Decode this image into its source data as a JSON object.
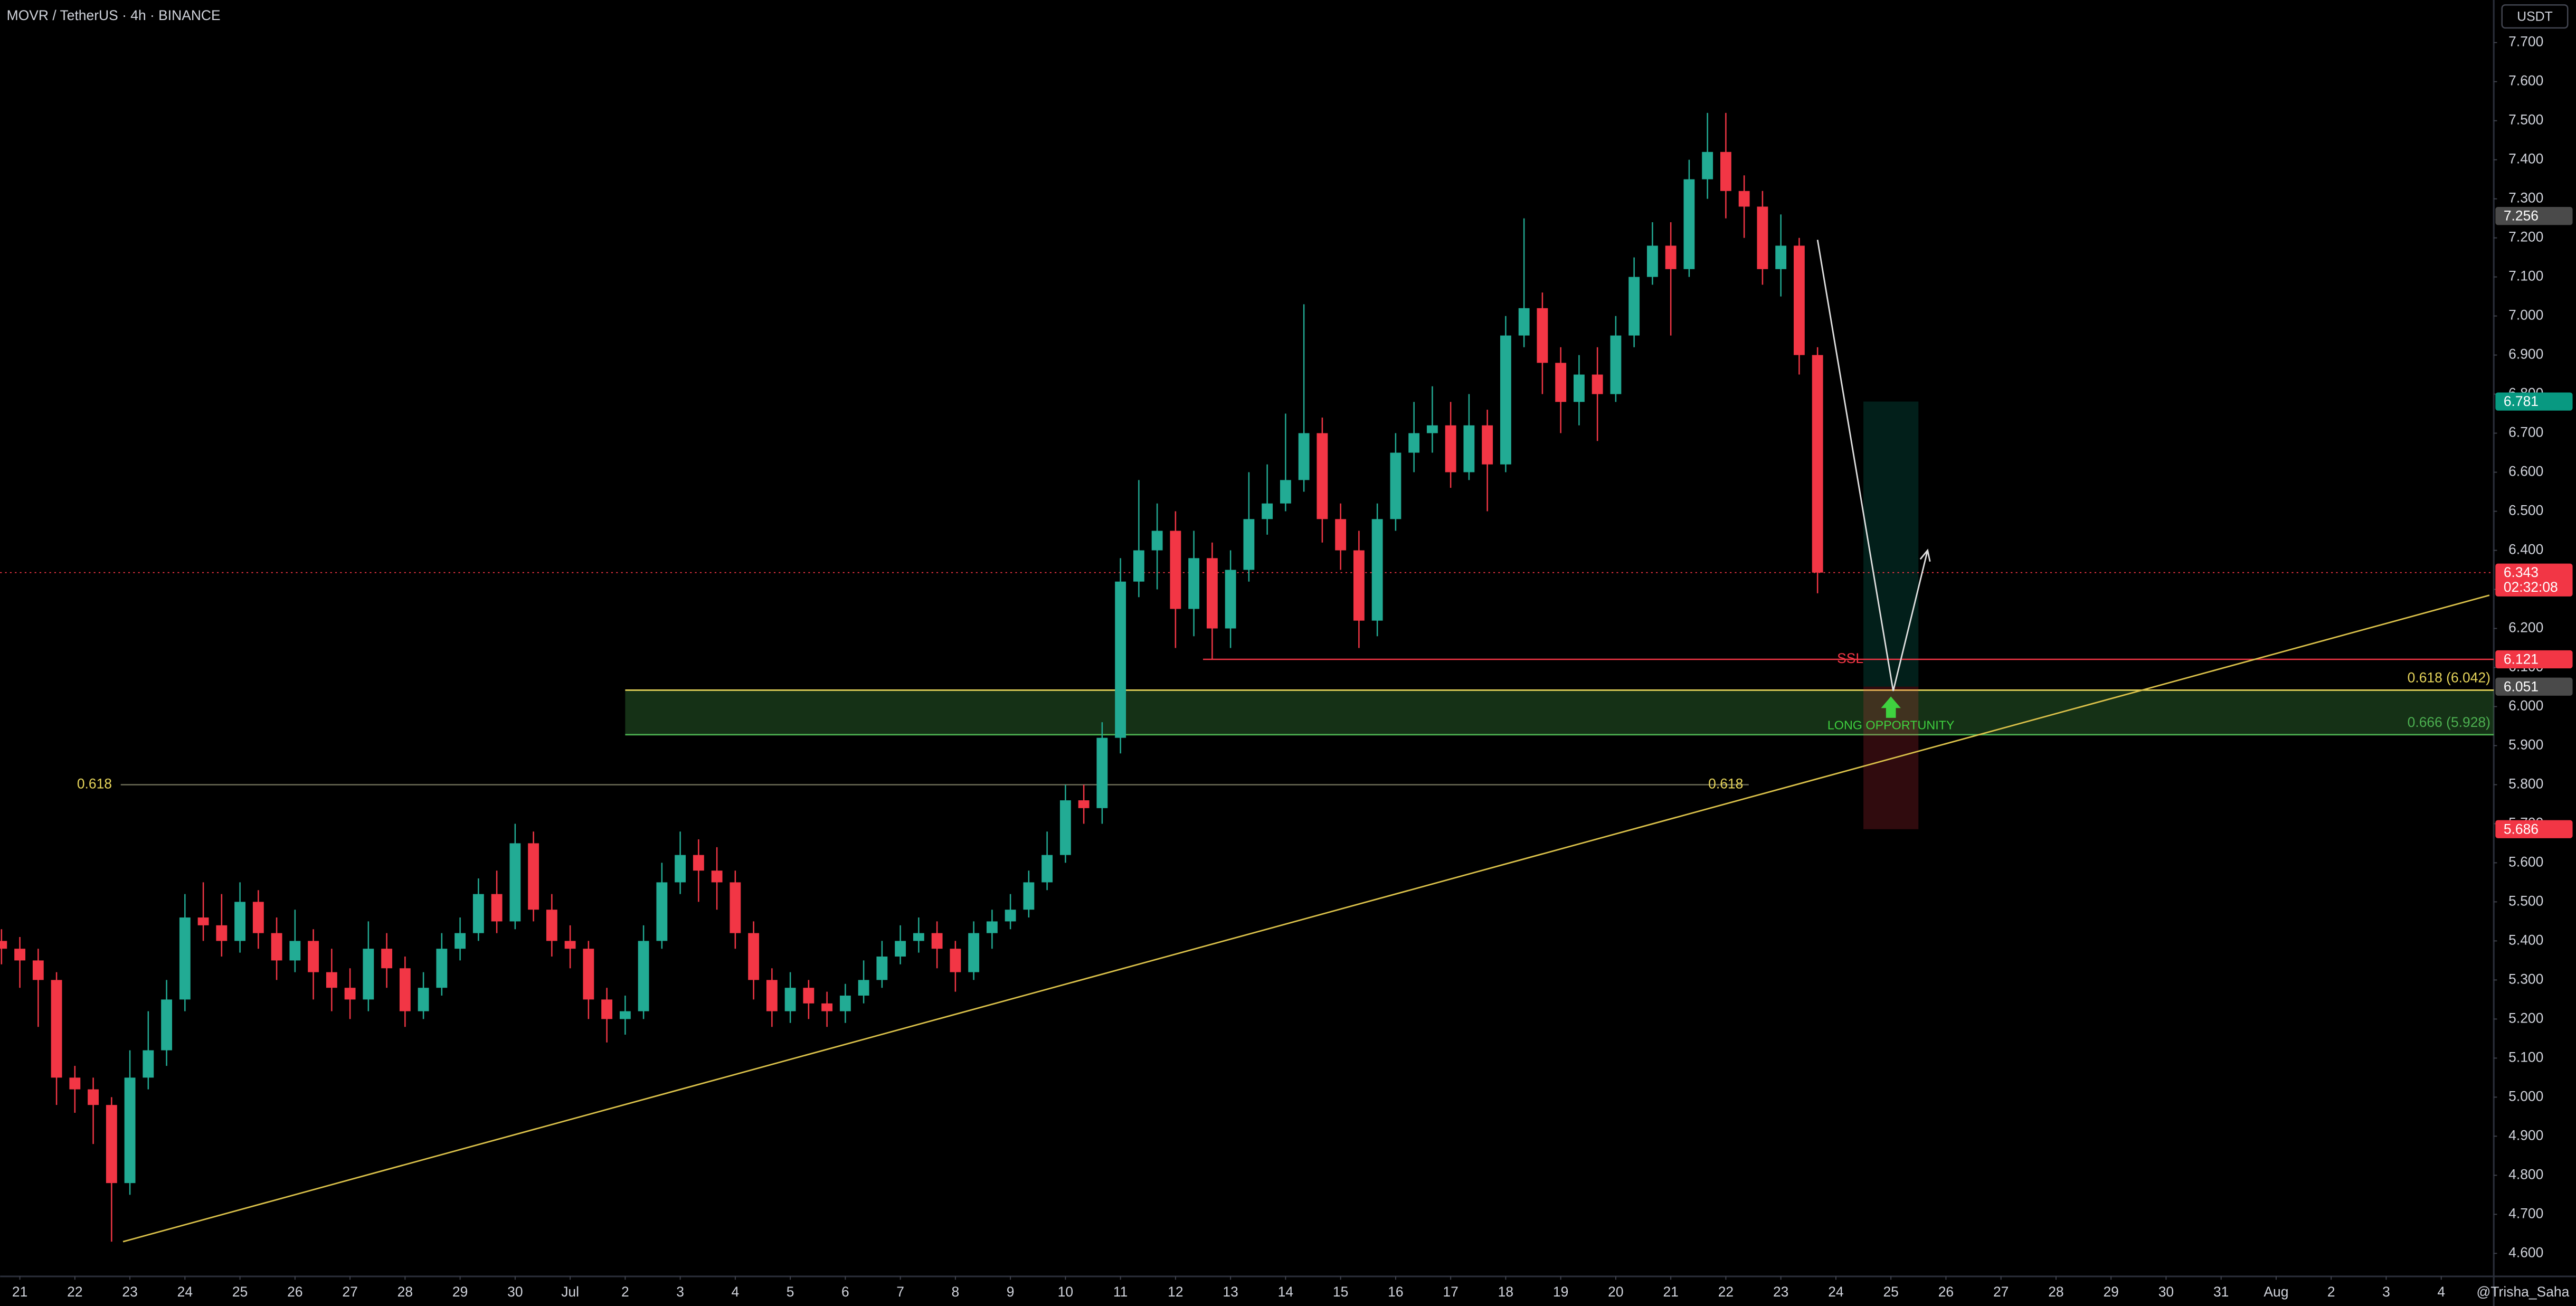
{
  "chart_data": {
    "type": "candlestick",
    "title": "MOVR / TetherUS · 4h · BINANCE",
    "currency": "USDT",
    "watermark": "@Trisha_Saha",
    "up_color": "#22ab94",
    "down_color": "#f23645",
    "xlim": [
      -8.6,
      1078.9
    ],
    "ylim": [
      4.541,
      7.809
    ],
    "xticks": [
      {
        "value": 0,
        "label": "21"
      },
      {
        "value": 24,
        "label": "22"
      },
      {
        "value": 48,
        "label": "23"
      },
      {
        "value": 72,
        "label": "24"
      },
      {
        "value": 96,
        "label": "25"
      },
      {
        "value": 120,
        "label": "26"
      },
      {
        "value": 144,
        "label": "27"
      },
      {
        "value": 168,
        "label": "28"
      },
      {
        "value": 192,
        "label": "29"
      },
      {
        "value": 216,
        "label": "30"
      },
      {
        "value": 240,
        "label": "Jul"
      },
      {
        "value": 264,
        "label": "2"
      },
      {
        "value": 288,
        "label": "3"
      },
      {
        "value": 312,
        "label": "4"
      },
      {
        "value": 336,
        "label": "5"
      },
      {
        "value": 360,
        "label": "6"
      },
      {
        "value": 384,
        "label": "7"
      },
      {
        "value": 408,
        "label": "8"
      },
      {
        "value": 432,
        "label": "9"
      },
      {
        "value": 456,
        "label": "10"
      },
      {
        "value": 480,
        "label": "11"
      },
      {
        "value": 504,
        "label": "12"
      },
      {
        "value": 528,
        "label": "13"
      },
      {
        "value": 552,
        "label": "14"
      },
      {
        "value": 576,
        "label": "15"
      },
      {
        "value": 600,
        "label": "16"
      },
      {
        "value": 624,
        "label": "17"
      },
      {
        "value": 648,
        "label": "18"
      },
      {
        "value": 672,
        "label": "19"
      },
      {
        "value": 696,
        "label": "20"
      },
      {
        "value": 720,
        "label": "21"
      },
      {
        "value": 744,
        "label": "22"
      },
      {
        "value": 768,
        "label": "23"
      },
      {
        "value": 792,
        "label": "24"
      },
      {
        "value": 816,
        "label": "25"
      },
      {
        "value": 840,
        "label": "26"
      },
      {
        "value": 864,
        "label": "27"
      },
      {
        "value": 888,
        "label": "28"
      },
      {
        "value": 912,
        "label": "29"
      },
      {
        "value": 936,
        "label": "30"
      },
      {
        "value": 960,
        "label": "31"
      },
      {
        "value": 984,
        "label": "Aug"
      },
      {
        "value": 1008,
        "label": "2"
      },
      {
        "value": 1032,
        "label": "3"
      },
      {
        "value": 1056,
        "label": "4"
      }
    ],
    "yticks": [
      {
        "value": 4.6,
        "label": "4.600"
      },
      {
        "value": 4.7,
        "label": "4.700"
      },
      {
        "value": 4.8,
        "label": "4.800"
      },
      {
        "value": 4.9,
        "label": "4.900"
      },
      {
        "value": 5.0,
        "label": "5.000"
      },
      {
        "value": 5.1,
        "label": "5.100"
      },
      {
        "value": 5.2,
        "label": "5.200"
      },
      {
        "value": 5.3,
        "label": "5.300"
      },
      {
        "value": 5.4,
        "label": "5.400"
      },
      {
        "value": 5.5,
        "label": "5.500"
      },
      {
        "value": 5.6,
        "label": "5.600"
      },
      {
        "value": 5.7,
        "label": "5.700"
      },
      {
        "value": 5.8,
        "label": "5.800"
      },
      {
        "value": 5.9,
        "label": "5.900"
      },
      {
        "value": 6.0,
        "label": "6.000"
      },
      {
        "value": 6.1,
        "label": "6.100"
      },
      {
        "value": 6.2,
        "label": "6.200"
      },
      {
        "value": 6.3,
        "label": "6.300"
      },
      {
        "value": 6.4,
        "label": "6.400"
      },
      {
        "value": 6.5,
        "label": "6.500"
      },
      {
        "value": 6.6,
        "label": "6.600"
      },
      {
        "value": 6.7,
        "label": "6.700"
      },
      {
        "value": 6.8,
        "label": "6.800"
      },
      {
        "value": 6.9,
        "label": "6.900"
      },
      {
        "value": 7.0,
        "label": "7.000"
      },
      {
        "value": 7.1,
        "label": "7.100"
      },
      {
        "value": 7.2,
        "label": "7.200"
      },
      {
        "value": 7.3,
        "label": "7.300"
      },
      {
        "value": 7.4,
        "label": "7.400"
      },
      {
        "value": 7.5,
        "label": "7.500"
      },
      {
        "value": 7.6,
        "label": "7.600"
      },
      {
        "value": 7.7,
        "label": "7.700"
      }
    ],
    "x": [
      -8,
      0,
      8,
      16,
      24,
      32,
      40,
      48,
      56,
      64,
      72,
      80,
      88,
      96,
      104,
      112,
      120,
      128,
      136,
      144,
      152,
      160,
      168,
      176,
      184,
      192,
      200,
      208,
      216,
      224,
      232,
      240,
      248,
      256,
      264,
      272,
      280,
      288,
      296,
      304,
      312,
      320,
      328,
      336,
      344,
      352,
      360,
      368,
      376,
      384,
      392,
      400,
      408,
      416,
      424,
      432,
      440,
      448,
      456,
      464,
      472,
      480,
      488,
      496,
      504,
      512,
      520,
      528,
      536,
      544,
      552,
      560,
      568,
      576,
      584,
      592,
      600,
      608,
      616,
      624,
      632,
      640,
      648,
      656,
      664,
      672,
      680,
      688,
      696,
      704,
      712,
      720,
      728,
      736,
      744,
      752,
      760,
      768,
      776,
      784
    ],
    "open": [
      5.4,
      5.38,
      5.35,
      5.3,
      5.05,
      5.02,
      4.98,
      4.78,
      5.05,
      5.12,
      5.25,
      5.46,
      5.44,
      5.4,
      5.5,
      5.42,
      5.35,
      5.4,
      5.32,
      5.28,
      5.25,
      5.38,
      5.33,
      5.22,
      5.28,
      5.38,
      5.42,
      5.52,
      5.45,
      5.65,
      5.48,
      5.4,
      5.38,
      5.25,
      5.2,
      5.22,
      5.4,
      5.55,
      5.62,
      5.58,
      5.55,
      5.42,
      5.3,
      5.22,
      5.28,
      5.24,
      5.22,
      5.26,
      5.3,
      5.36,
      5.4,
      5.42,
      5.38,
      5.32,
      5.42,
      5.45,
      5.48,
      5.55,
      5.62,
      5.76,
      5.74,
      5.92,
      6.32,
      6.4,
      6.45,
      6.25,
      6.38,
      6.2,
      6.35,
      6.48,
      6.52,
      6.58,
      6.7,
      6.48,
      6.4,
      6.22,
      6.48,
      6.65,
      6.7,
      6.72,
      6.6,
      6.72,
      6.62,
      6.95,
      7.02,
      6.88,
      6.78,
      6.85,
      6.8,
      6.95,
      7.1,
      7.18,
      7.12,
      7.35,
      7.42,
      7.32,
      7.28,
      7.12,
      7.18,
      6.9
    ],
    "high": [
      5.43,
      5.41,
      5.38,
      5.32,
      5.08,
      5.05,
      5.0,
      5.12,
      5.22,
      5.3,
      5.52,
      5.55,
      5.52,
      5.55,
      5.53,
      5.46,
      5.48,
      5.43,
      5.38,
      5.33,
      5.45,
      5.42,
      5.36,
      5.32,
      5.42,
      5.46,
      5.56,
      5.58,
      5.7,
      5.68,
      5.52,
      5.44,
      5.4,
      5.28,
      5.26,
      5.44,
      5.6,
      5.68,
      5.66,
      5.64,
      5.58,
      5.45,
      5.33,
      5.32,
      5.3,
      5.27,
      5.29,
      5.35,
      5.4,
      5.44,
      5.46,
      5.45,
      5.4,
      5.45,
      5.48,
      5.52,
      5.58,
      5.68,
      5.8,
      5.8,
      5.96,
      6.38,
      6.58,
      6.52,
      6.5,
      6.45,
      6.42,
      6.4,
      6.6,
      6.62,
      6.75,
      7.03,
      6.74,
      6.52,
      6.45,
      6.52,
      6.7,
      6.78,
      6.82,
      6.78,
      6.8,
      6.76,
      7.0,
      7.25,
      7.06,
      6.92,
      6.9,
      6.92,
      7.0,
      7.15,
      7.24,
      7.24,
      7.4,
      7.52,
      7.52,
      7.36,
      7.32,
      7.26,
      7.2,
      6.92
    ],
    "low": [
      5.34,
      5.28,
      5.18,
      4.98,
      4.96,
      4.88,
      4.63,
      4.75,
      5.02,
      5.08,
      5.22,
      5.4,
      5.36,
      5.37,
      5.38,
      5.3,
      5.32,
      5.25,
      5.22,
      5.2,
      5.22,
      5.28,
      5.18,
      5.2,
      5.26,
      5.35,
      5.4,
      5.42,
      5.43,
      5.45,
      5.36,
      5.33,
      5.2,
      5.14,
      5.16,
      5.2,
      5.38,
      5.52,
      5.5,
      5.48,
      5.38,
      5.25,
      5.18,
      5.19,
      5.2,
      5.18,
      5.19,
      5.24,
      5.28,
      5.34,
      5.37,
      5.33,
      5.27,
      5.3,
      5.38,
      5.43,
      5.46,
      5.53,
      5.6,
      5.7,
      5.7,
      5.88,
      6.28,
      6.3,
      6.15,
      6.18,
      6.12,
      6.15,
      6.32,
      6.44,
      6.5,
      6.55,
      6.42,
      6.35,
      6.15,
      6.18,
      6.45,
      6.6,
      6.65,
      6.56,
      6.58,
      6.5,
      6.6,
      6.92,
      6.8,
      6.7,
      6.72,
      6.68,
      6.78,
      6.92,
      7.08,
      6.95,
      7.1,
      7.3,
      7.25,
      7.2,
      7.08,
      7.05,
      6.85,
      6.29
    ],
    "close": [
      5.38,
      5.35,
      5.3,
      5.05,
      5.02,
      4.98,
      4.78,
      5.05,
      5.12,
      5.25,
      5.46,
      5.44,
      5.4,
      5.5,
      5.42,
      5.35,
      5.4,
      5.32,
      5.28,
      5.25,
      5.38,
      5.33,
      5.22,
      5.28,
      5.38,
      5.42,
      5.52,
      5.45,
      5.65,
      5.48,
      5.4,
      5.38,
      5.25,
      5.2,
      5.22,
      5.4,
      5.55,
      5.62,
      5.58,
      5.55,
      5.42,
      5.3,
      5.22,
      5.28,
      5.24,
      5.22,
      5.26,
      5.3,
      5.36,
      5.4,
      5.42,
      5.38,
      5.32,
      5.42,
      5.45,
      5.48,
      5.55,
      5.62,
      5.76,
      5.74,
      5.92,
      6.32,
      6.4,
      6.45,
      6.25,
      6.38,
      6.2,
      6.35,
      6.48,
      6.52,
      6.58,
      6.7,
      6.48,
      6.4,
      6.22,
      6.48,
      6.65,
      6.7,
      6.72,
      6.6,
      6.72,
      6.62,
      6.95,
      7.02,
      6.88,
      6.78,
      6.85,
      6.8,
      6.95,
      7.1,
      7.18,
      7.12,
      7.35,
      7.42,
      7.32,
      7.28,
      7.12,
      7.18,
      6.9,
      6.343
    ],
    "countdown": "02:32:08",
    "marker_price": 7.256,
    "trendline": {
      "x": [
        45,
        1077
      ],
      "y": [
        4.63,
        6.285
      ]
    },
    "projection": {
      "x": [
        784,
        817,
        832
      ],
      "y": [
        7.195,
        6.04,
        6.4
      ]
    },
    "fib_line": {
      "value": 5.8,
      "x": [
        44,
        754
      ],
      "label": "0.618"
    },
    "zone": {
      "x_start": 264,
      "top": 6.042,
      "bottom": 5.928,
      "top_label": "0.618 (6.042)",
      "bottom_label": "0.666 (5.928)"
    },
    "ssl": {
      "value": 6.121,
      "x_start": 516,
      "label": "SSL"
    },
    "position": {
      "x": [
        804,
        828
      ],
      "target": 6.781,
      "entry": 6.051,
      "stop": 5.686,
      "label": "LONG OPPORTUNITY"
    }
  }
}
